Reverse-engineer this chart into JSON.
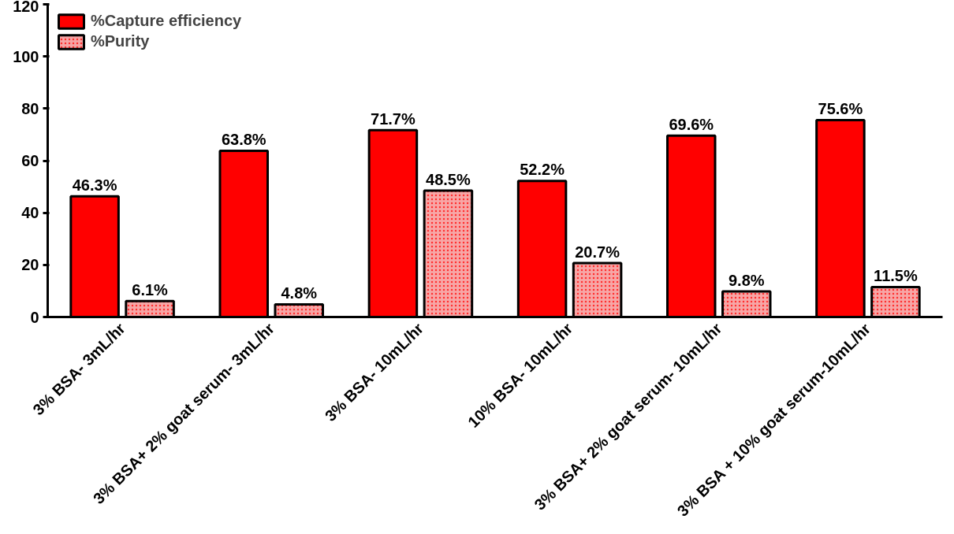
{
  "chart_data": {
    "type": "bar",
    "categories": [
      "3% BSA- 3mL/hr",
      "3% BSA+ 2% goat serum- 3mL/hr",
      "3% BSA- 10mL/hr",
      "10% BSA- 10mL/hr",
      "3% BSA+ 2% goat serum- 10mL/hr",
      "3% BSA + 10% goat serum-10mL/hr"
    ],
    "series": [
      {
        "name": "%Capture efficiency",
        "color": "#ff0000",
        "values": [
          46.3,
          63.8,
          71.7,
          52.2,
          69.6,
          75.6
        ],
        "value_labels": [
          "46.3%",
          "63.8%",
          "71.7%",
          "52.2%",
          "69.6%",
          "75.6%"
        ]
      },
      {
        "name": "%Purity",
        "color": "#f7a6a6",
        "values": [
          6.1,
          4.8,
          48.5,
          20.7,
          9.8,
          11.5
        ],
        "value_labels": [
          "6.1%",
          "4.8%",
          "48.5%",
          "20.7%",
          "9.8%",
          "11.5%"
        ]
      }
    ],
    "ylim": [
      0,
      120
    ],
    "yticks": [
      0,
      20,
      40,
      60,
      80,
      100,
      120
    ],
    "grid": false,
    "legend": "top left"
  }
}
